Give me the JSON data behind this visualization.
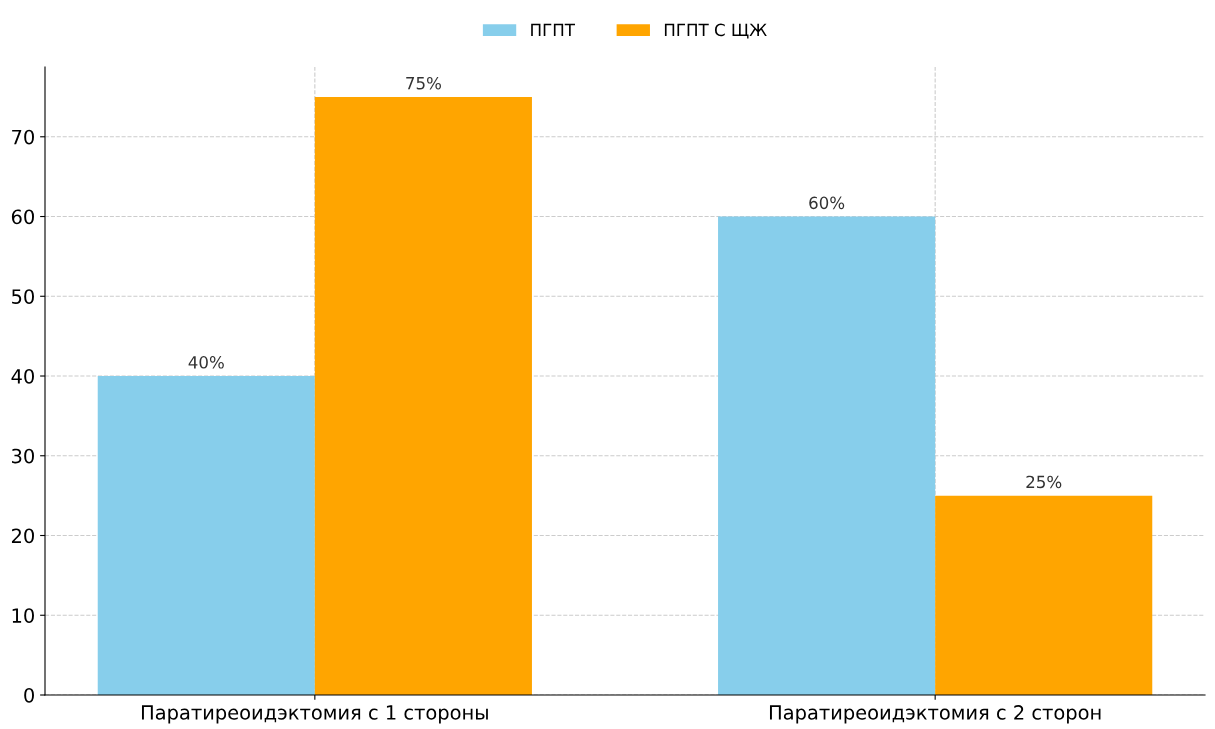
{
  "chart_data": {
    "type": "bar",
    "categories": [
      "Паратиреоидэктомия с 1 стороны",
      "Паратиреоидэктомия с 2 сторон"
    ],
    "series": [
      {
        "name": "ПГПТ",
        "color": "#87ceeb",
        "values": [
          40,
          60
        ],
        "value_labels": [
          "40%",
          "60%"
        ]
      },
      {
        "name": "ПГПТ С ЩЖ",
        "color": "#ffa500",
        "values": [
          75,
          25
        ],
        "value_labels": [
          "75%",
          "25%"
        ]
      }
    ],
    "ylim": [
      0,
      78.75
    ],
    "yticks": [
      0,
      10,
      20,
      30,
      40,
      50,
      60,
      70
    ],
    "grid": true,
    "legend": "top"
  }
}
